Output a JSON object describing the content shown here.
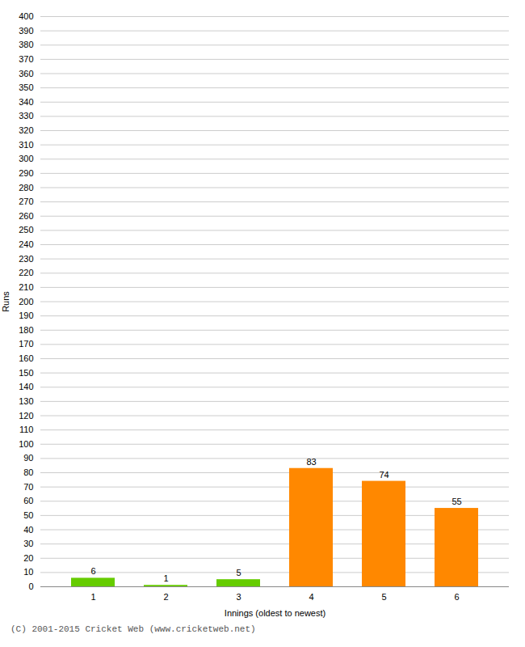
{
  "chart_data": {
    "type": "bar",
    "categories": [
      1,
      2,
      3,
      4,
      5,
      6
    ],
    "values": [
      6,
      1,
      5,
      83,
      74,
      55
    ],
    "colors": [
      "#66cc00",
      "#66cc00",
      "#66cc00",
      "#ff8800",
      "#ff8800",
      "#ff8800"
    ],
    "xlabel": "Innings (oldest to newest)",
    "ylabel": "Runs",
    "ylim": [
      0,
      400
    ],
    "yticks": [
      0,
      10,
      20,
      30,
      40,
      50,
      60,
      70,
      80,
      90,
      100,
      110,
      120,
      130,
      140,
      150,
      160,
      170,
      180,
      190,
      200,
      210,
      220,
      230,
      240,
      250,
      260,
      270,
      280,
      290,
      300,
      310,
      320,
      330,
      340,
      350,
      360,
      370,
      380,
      390,
      400
    ],
    "grid": true,
    "data_labels": true,
    "annotations": [
      "(C) 2001-2015 Cricket Web (www.cricketweb.net)"
    ]
  }
}
